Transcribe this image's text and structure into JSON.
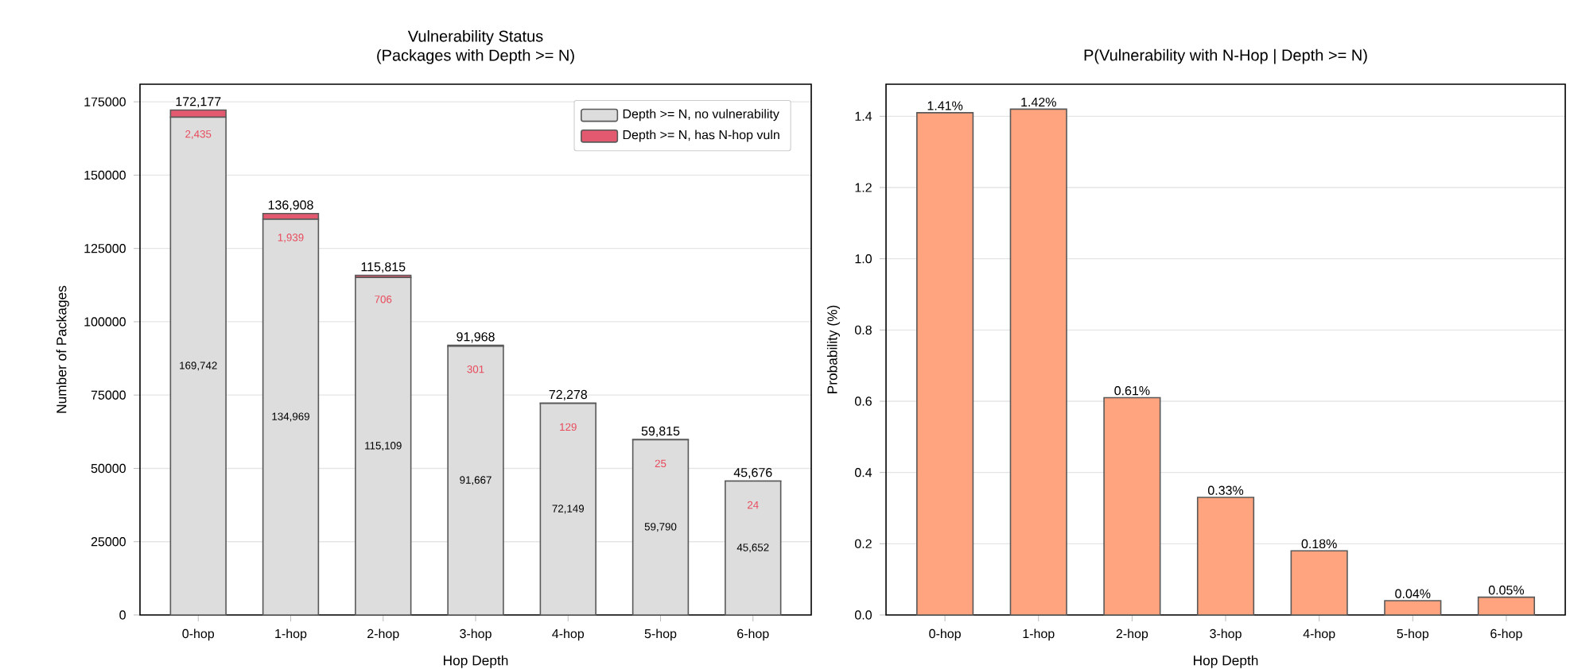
{
  "chart_data": [
    {
      "type": "bar",
      "title": "Vulnerability Status",
      "subtitle": "(Packages with Depth >= N)",
      "xlabel": "Hop Depth",
      "ylabel": "Number of Packages",
      "stacked": true,
      "categories": [
        "0-hop",
        "1-hop",
        "2-hop",
        "3-hop",
        "4-hop",
        "5-hop",
        "6-hop"
      ],
      "series": [
        {
          "name": "Depth >= N, no vulnerability",
          "color": "#dddddd",
          "values": [
            169742,
            134969,
            115109,
            91667,
            72149,
            59790,
            45652
          ],
          "value_labels": [
            "169,742",
            "134,969",
            "115,109",
            "91,667",
            "72,149",
            "59,790",
            "45,652"
          ]
        },
        {
          "name": "Depth >= N, has N-hop vuln",
          "color": "#e35a70",
          "values": [
            2435,
            1939,
            706,
            301,
            129,
            25,
            24
          ],
          "value_labels": [
            "2,435",
            "1,939",
            "706",
            "301",
            "129",
            "25",
            "24"
          ]
        }
      ],
      "totals": [
        "172,177",
        "136,908",
        "115,815",
        "91,968",
        "72,278",
        "59,815",
        "45,676"
      ],
      "ylim": [
        0,
        181000
      ],
      "yticks": [
        0,
        25000,
        50000,
        75000,
        100000,
        125000,
        150000,
        175000
      ],
      "grid": "y",
      "legend": "top right"
    },
    {
      "type": "bar",
      "title": "P(Vulnerability with N-Hop | Depth >= N)",
      "xlabel": "Hop Depth",
      "ylabel": "Probability (%)",
      "categories": [
        "0-hop",
        "1-hop",
        "2-hop",
        "3-hop",
        "4-hop",
        "5-hop",
        "6-hop"
      ],
      "values": [
        1.41,
        1.42,
        0.61,
        0.33,
        0.18,
        0.04,
        0.05
      ],
      "color": "#ffa47f",
      "value_labels": [
        "1.41%",
        "1.42%",
        "0.61%",
        "0.33%",
        "0.18%",
        "0.04%",
        "0.05%"
      ],
      "ylim": [
        0,
        1.49
      ],
      "yticks": [
        {
          "value": 0,
          "label": "0.0"
        },
        0.2,
        0.4,
        0.6,
        0.8,
        {
          "value": 1,
          "label": "1.0"
        },
        1.2,
        1.4
      ],
      "grid": "y"
    }
  ]
}
